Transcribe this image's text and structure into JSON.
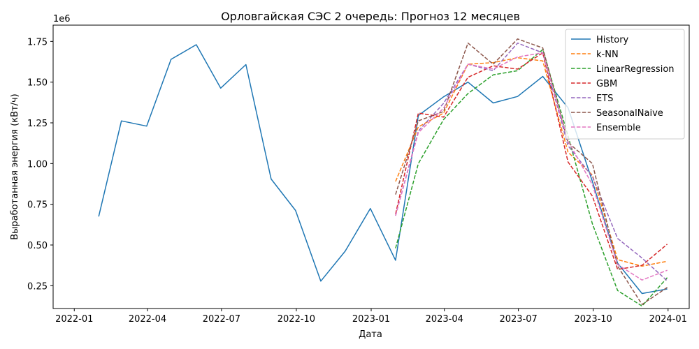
{
  "chart_data": {
    "type": "line",
    "title": "Орловгайская СЭС 2 очередь: Прогноз 12 месяцев",
    "xlabel": "Дата",
    "ylabel": "Выработанная энергия (кВт/ч)",
    "y_scale_label": "1e6",
    "xlim": [
      "2021-12-06",
      "2024-01-27"
    ],
    "ylim": [
      110000,
      1850000
    ],
    "x_ticks": [
      {
        "date": "2022-01-01",
        "label": "2022-01"
      },
      {
        "date": "2022-04-01",
        "label": "2022-04"
      },
      {
        "date": "2022-07-01",
        "label": "2022-07"
      },
      {
        "date": "2022-10-01",
        "label": "2022-10"
      },
      {
        "date": "2023-01-01",
        "label": "2023-01"
      },
      {
        "date": "2023-04-01",
        "label": "2023-04"
      },
      {
        "date": "2023-07-01",
        "label": "2023-07"
      },
      {
        "date": "2023-10-01",
        "label": "2023-10"
      },
      {
        "date": "2024-01-01",
        "label": "2024-01"
      }
    ],
    "y_ticks": [
      {
        "value": 250000,
        "label": "0.25"
      },
      {
        "value": 500000,
        "label": "0.50"
      },
      {
        "value": 750000,
        "label": "0.75"
      },
      {
        "value": 1000000,
        "label": "1.00"
      },
      {
        "value": 1250000,
        "label": "1.25"
      },
      {
        "value": 1500000,
        "label": "1.50"
      },
      {
        "value": 1750000,
        "label": "1.75"
      }
    ],
    "grid": false,
    "legend_position": "top-right",
    "series": [
      {
        "name": "History",
        "color": "#1f77b4",
        "style": "solid",
        "x": [
          "2022-01-31",
          "2022-02-28",
          "2022-03-31",
          "2022-04-30",
          "2022-05-31",
          "2022-06-30",
          "2022-07-31",
          "2022-08-31",
          "2022-09-30",
          "2022-10-31",
          "2022-11-30",
          "2022-12-31",
          "2023-01-31",
          "2023-02-28",
          "2023-03-31",
          "2023-04-30",
          "2023-05-31",
          "2023-06-30",
          "2023-07-31",
          "2023-08-31",
          "2023-09-30",
          "2023-10-31",
          "2023-11-30",
          "2023-12-31"
        ],
        "values": [
          675000,
          1262000,
          1230000,
          1640000,
          1730000,
          1463000,
          1608000,
          905000,
          712000,
          278000,
          462000,
          724000,
          406000,
          1295000,
          1410000,
          1500000,
          1372000,
          1412000,
          1535000,
          1343000,
          890000,
          388000,
          202000,
          230000
        ]
      },
      {
        "name": "k-NN",
        "color": "#ff7f0e",
        "style": "dashed",
        "x": [
          "2023-01-31",
          "2023-02-28",
          "2023-03-31",
          "2023-04-30",
          "2023-05-31",
          "2023-06-30",
          "2023-07-31",
          "2023-08-31",
          "2023-09-30",
          "2023-10-31",
          "2023-11-30",
          "2023-12-31"
        ],
        "values": [
          890000,
          1225000,
          1310000,
          1610000,
          1620000,
          1650000,
          1630000,
          1070000,
          930000,
          410000,
          370000,
          400000
        ]
      },
      {
        "name": "LinearRegression",
        "color": "#2ca02c",
        "style": "dashed",
        "x": [
          "2023-01-31",
          "2023-02-28",
          "2023-03-31",
          "2023-04-30",
          "2023-05-31",
          "2023-06-30",
          "2023-07-31",
          "2023-08-31",
          "2023-09-30",
          "2023-10-31",
          "2023-11-30",
          "2023-12-31"
        ],
        "values": [
          480000,
          1000000,
          1270000,
          1430000,
          1545000,
          1570000,
          1700000,
          1170000,
          630000,
          220000,
          125000,
          300000
        ]
      },
      {
        "name": "GBM",
        "color": "#d62728",
        "style": "dashed",
        "x": [
          "2023-01-31",
          "2023-02-28",
          "2023-03-31",
          "2023-04-30",
          "2023-05-31",
          "2023-06-30",
          "2023-07-31",
          "2023-08-31",
          "2023-09-30",
          "2023-10-31",
          "2023-11-30",
          "2023-12-31"
        ],
        "values": [
          690000,
          1310000,
          1285000,
          1530000,
          1600000,
          1580000,
          1680000,
          1010000,
          800000,
          350000,
          375000,
          505000
        ]
      },
      {
        "name": "ETS",
        "color": "#9467bd",
        "style": "dashed",
        "x": [
          "2023-01-31",
          "2023-02-28",
          "2023-03-31",
          "2023-04-30",
          "2023-05-31",
          "2023-06-30",
          "2023-07-31",
          "2023-08-31",
          "2023-09-30",
          "2023-10-31",
          "2023-11-30",
          "2023-12-31"
        ],
        "values": [
          680000,
          1200000,
          1370000,
          1610000,
          1570000,
          1740000,
          1680000,
          1110000,
          920000,
          540000,
          420000,
          280000
        ]
      },
      {
        "name": "SeasonalNaive",
        "color": "#8c564b",
        "style": "dashed",
        "x": [
          "2023-01-31",
          "2023-02-28",
          "2023-03-31",
          "2023-04-30",
          "2023-05-31",
          "2023-06-30",
          "2023-07-31",
          "2023-08-31",
          "2023-09-30",
          "2023-10-31",
          "2023-11-30",
          "2023-12-31"
        ],
        "values": [
          810000,
          1262000,
          1320000,
          1740000,
          1610000,
          1765000,
          1710000,
          1130000,
          1000000,
          370000,
          135000,
          240000
        ]
      },
      {
        "name": "Ensemble",
        "color": "#e377c2",
        "style": "dashed",
        "x": [
          "2023-01-31",
          "2023-02-28",
          "2023-03-31",
          "2023-04-30",
          "2023-05-31",
          "2023-06-30",
          "2023-07-31",
          "2023-08-31",
          "2023-09-30",
          "2023-10-31",
          "2023-11-30",
          "2023-12-31"
        ],
        "values": [
          680000,
          1190000,
          1340000,
          1610000,
          1580000,
          1655000,
          1680000,
          1140000,
          870000,
          380000,
          285000,
          345000
        ]
      }
    ]
  }
}
